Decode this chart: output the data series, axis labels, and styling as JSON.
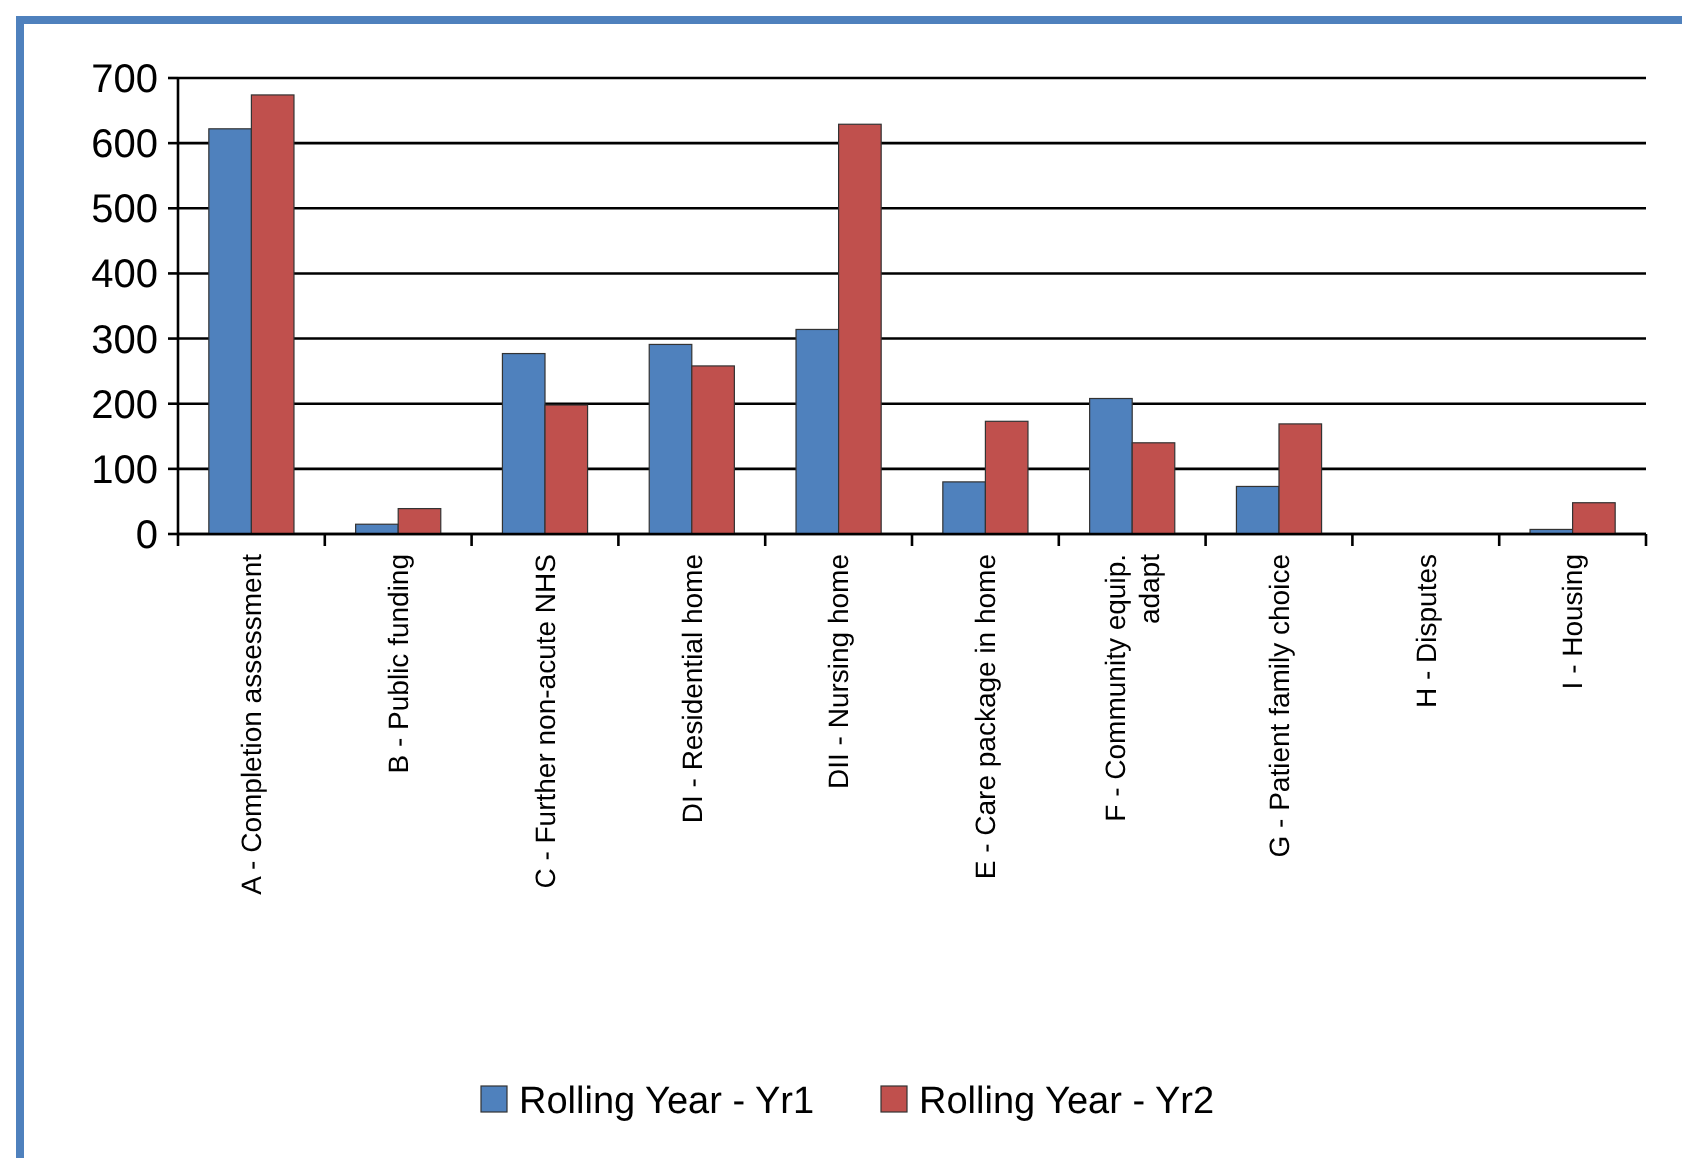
{
  "chart_data": {
    "type": "bar",
    "categories": [
      "A - Completion assessment",
      "B - Public funding",
      "C - Further non-acute NHS",
      "DI - Residential home",
      "DII - Nursing home",
      "E - Care package in home",
      "F - Community equip. adapt",
      "G - Patient family choice",
      "H - Disputes",
      "I - Housing"
    ],
    "series": [
      {
        "name": "Rolling Year - Yr1",
        "color": "#4f81bd",
        "values": [
          622,
          15,
          277,
          291,
          314,
          80,
          208,
          73,
          0,
          7
        ]
      },
      {
        "name": "Rolling Year - Yr2",
        "color": "#c0504d",
        "values": [
          674,
          39,
          198,
          258,
          629,
          173,
          140,
          169,
          0,
          48
        ]
      }
    ],
    "ylim": [
      0,
      700
    ],
    "yticks": [
      0,
      100,
      200,
      300,
      400,
      500,
      600,
      700
    ],
    "grid": "y",
    "legend": "bottom"
  }
}
